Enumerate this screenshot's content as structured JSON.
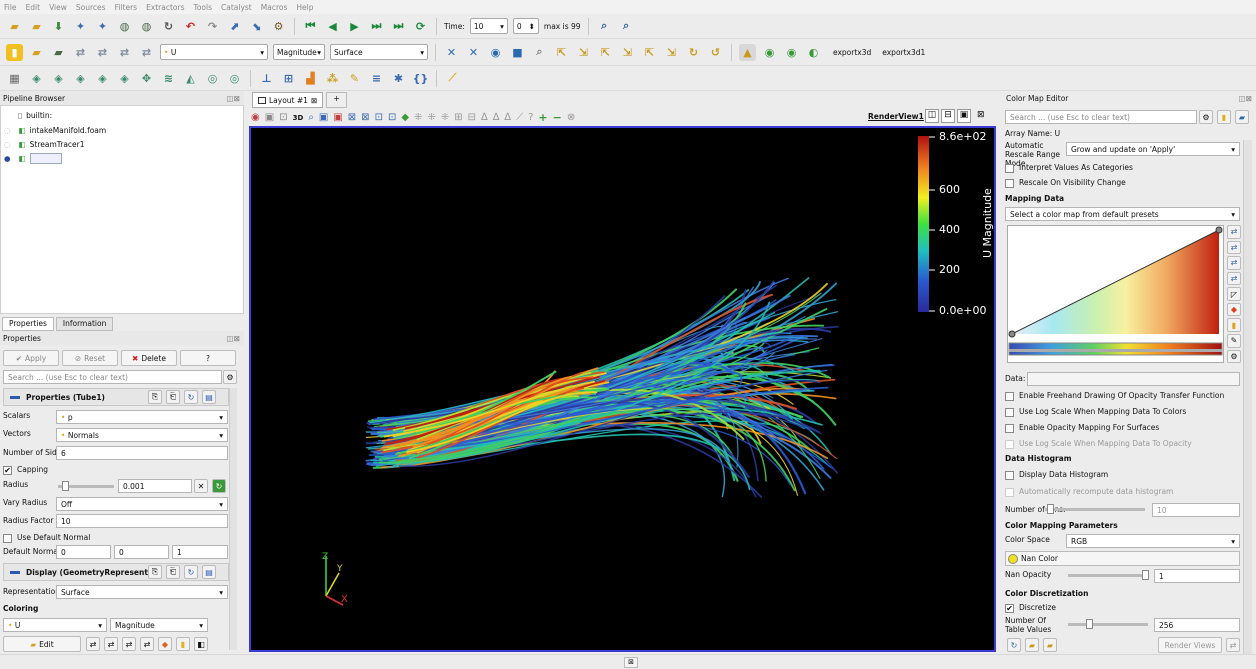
{
  "menu": [
    "File",
    "Edit",
    "View",
    "Sources",
    "Filters",
    "Extractors",
    "Tools",
    "Catalyst",
    "Macros",
    "Help"
  ],
  "toolbar1": {
    "time_label": "Time:",
    "time_value": "10",
    "time_step": "0",
    "max_label": "max is 99"
  },
  "toolbar2": {
    "array_value": "U",
    "component_value": "Magnitude",
    "representation_value": "Surface",
    "export1": "exportx3d",
    "export2": "exportx3d1"
  },
  "pipeline": {
    "title": "Pipeline Browser",
    "items": [
      "builtin:",
      "intakeManifold.foam",
      "StreamTracer1",
      ""
    ]
  },
  "tabs": {
    "properties": "Properties",
    "information": "Information"
  },
  "properties": {
    "title": "Properties",
    "apply": "Apply",
    "reset": "Reset",
    "delete": "Delete",
    "help": "?",
    "search_placeholder": "Search ... (use Esc to clear text)",
    "section_tube": "Properties (Tube1)",
    "scalars_label": "Scalars",
    "scalars_value": "p",
    "vectors_label": "Vectors",
    "vectors_value": "Normals",
    "sides_label": "Number of Sides",
    "sides_value": "6",
    "capping_label": "Capping",
    "radius_label": "Radius",
    "radius_value": "0.001",
    "vary_label": "Vary Radius",
    "vary_value": "Off",
    "factor_label": "Radius Factor",
    "factor_value": "10",
    "use_default_normal": "Use Default Normal",
    "default_normal_label": "Default Normal",
    "normal_x": "0",
    "normal_y": "0",
    "normal_z": "1",
    "section_display": "Display (GeometryRepresenta",
    "representation_label": "Representation",
    "representation_value": "Surface",
    "coloring_label": "Coloring",
    "coloring_array": "U",
    "coloring_component": "Magnitude",
    "edit": "Edit"
  },
  "layout": {
    "tab_label": "Layout #1",
    "add_tab": "+",
    "view_name": "RenderView1",
    "three_d": "3D"
  },
  "colorbar": {
    "title": "U Magnitude",
    "ticks": [
      "8.6e+02",
      "600",
      "400",
      "200",
      "0.0e+00"
    ]
  },
  "axes": {
    "x": "X",
    "y": "Y",
    "z": "Z"
  },
  "color_map_editor": {
    "title": "Color Map Editor",
    "search_placeholder": "Search ... (use Esc to clear text)",
    "array_name": "Array Name: U",
    "auto_rescale_label": "Automatic Rescale Range Mode",
    "auto_rescale_value": "Grow and update on 'Apply'",
    "interpret_categories": "Interpret Values As Categories",
    "rescale_visibility": "Rescale On Visibility Change",
    "mapping_data": "Mapping Data",
    "preset_placeholder": "Select a color map from default presets",
    "data_label": "Data:",
    "freehand": "Enable Freehand Drawing Of Opacity Transfer Function",
    "log_scale": "Use Log Scale When Mapping Data To Colors",
    "opacity_mapping": "Enable Opacity Mapping For Surfaces",
    "log_opacity": "Use Log Scale When Mapping Data To Opacity",
    "histogram_section": "Data Histogram",
    "display_histogram": "Display Data Histogram",
    "auto_recompute": "Automatically recompute data histogram",
    "bins_label": "Number of Bins:",
    "bins_value": "10",
    "params_section": "Color Mapping Parameters",
    "color_space_label": "Color Space",
    "color_space_value": "RGB",
    "nan_color": "Nan Color",
    "nan_opacity_label": "Nan Opacity",
    "nan_opacity_value": "1",
    "discretization_section": "Color Discretization",
    "discretize": "Discretize",
    "table_values_label": "Number Of Table Values",
    "table_values_value": "256",
    "render_views": "Render Views"
  },
  "colors": {
    "render_bg": "#000000",
    "view_border": "#3b3bd6",
    "accent_yellow": "#f0d020"
  }
}
